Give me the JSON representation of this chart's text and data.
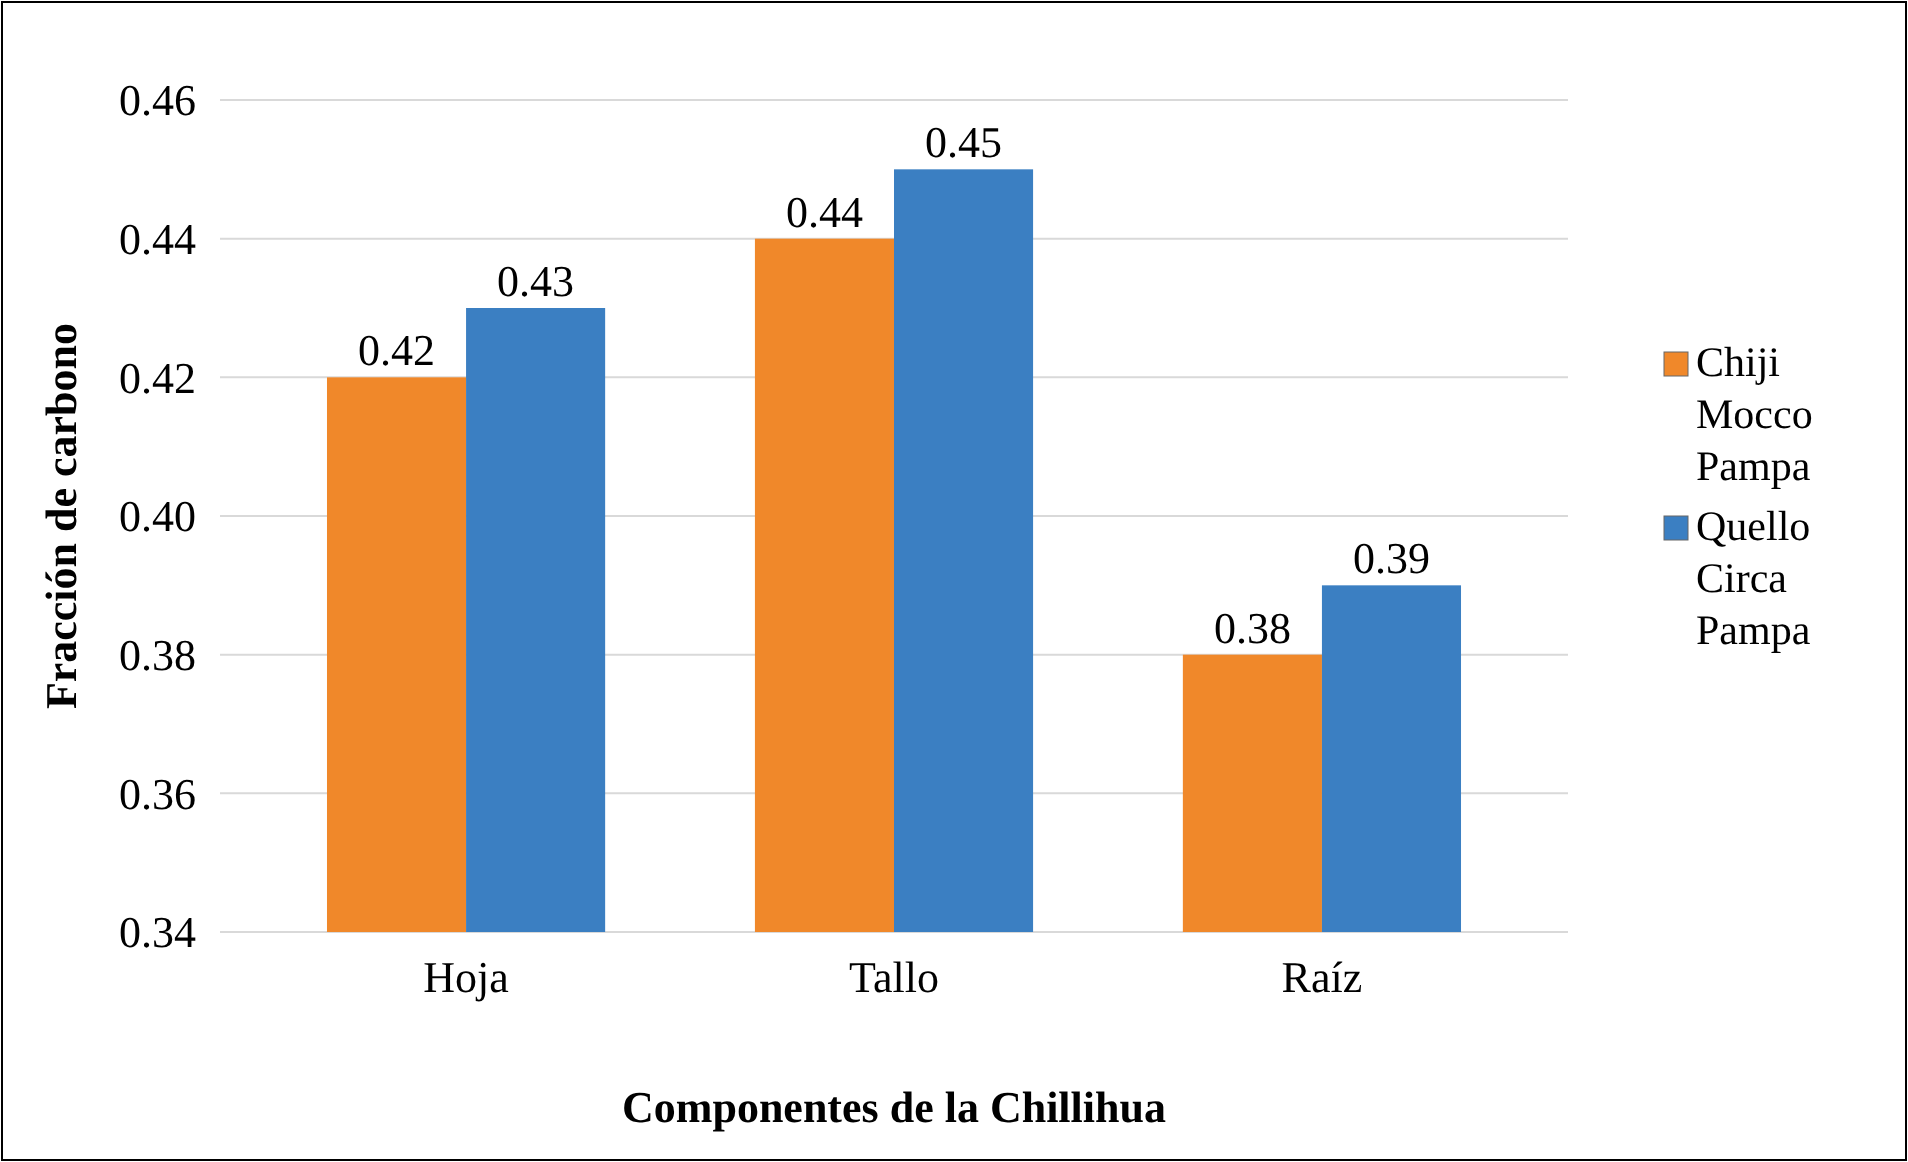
{
  "chart_data": {
    "type": "bar",
    "xlabel": "Componentes de la Chillihua",
    "ylabel": "Fracción de carbono",
    "categories": [
      "Hoja",
      "Tallo",
      "Raíz"
    ],
    "series": [
      {
        "name": "Chiji Mocco Pampa",
        "color": "#f0882a",
        "values": [
          0.42,
          0.44,
          0.38
        ]
      },
      {
        "name": "Quello Circa Pampa",
        "color": "#3b7fc2",
        "values": [
          0.43,
          0.45,
          0.39
        ]
      }
    ],
    "ylim": [
      0.34,
      0.46
    ],
    "yticks": [
      0.34,
      0.36,
      0.38,
      {
        "value": 0.4,
        "label": "0.40"
      },
      0.42,
      0.44,
      0.46
    ],
    "grid": "y",
    "legend": "right",
    "data_labels": true
  }
}
